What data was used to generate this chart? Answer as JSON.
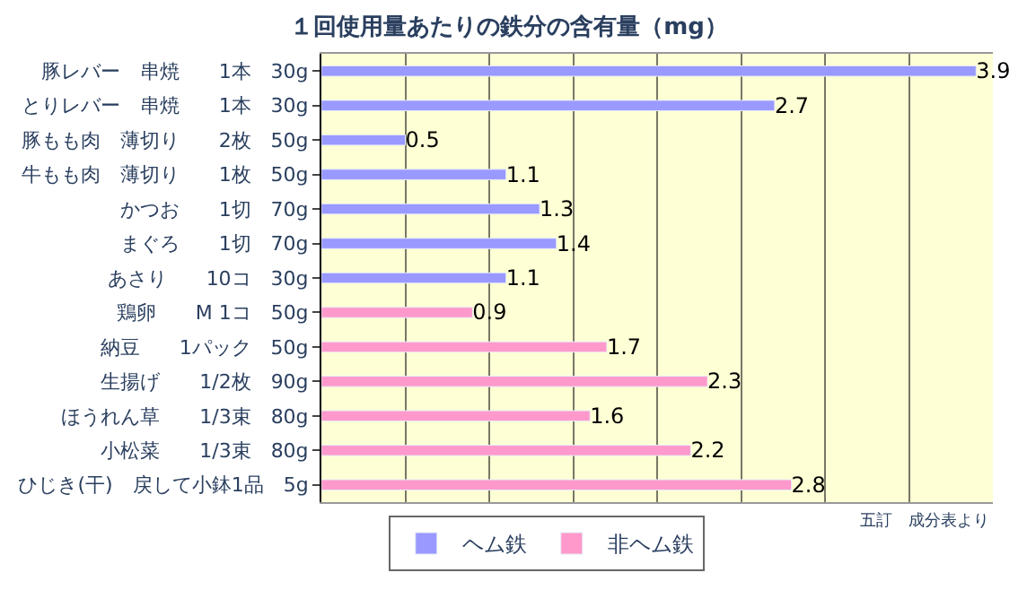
{
  "chart_data": {
    "type": "bar",
    "orientation": "horizontal",
    "title": "１回使用量あたりの鉄分の含有量（mg）",
    "categories": [
      "豚レバー　串焼　　1本　30g",
      "とりレバー　串焼　　1本　30g",
      "豚もも肉　薄切り　　2枚　50g",
      "牛もも肉　薄切り　　1枚　50g",
      "かつお　　1切　70g",
      "まぐろ　　1切　70g",
      "あさり　　10コ　30g",
      "鶏卵　　M 1コ　50g",
      "納豆　　1パック　50g",
      "生揚げ　　1/2枚　90g",
      "ほうれん草　　1/3束　80g",
      "小松菜　　1/3束　80g",
      "ひじき(干)　戻して小鉢1品　5g"
    ],
    "series": [
      {
        "name": "ヘム鉄",
        "color": "#9999ff",
        "values": [
          3.9,
          2.7,
          0.5,
          1.1,
          1.3,
          1.4,
          1.1,
          null,
          null,
          null,
          null,
          null,
          null
        ]
      },
      {
        "name": "非ヘム鉄",
        "color": "#ff99cc",
        "values": [
          null,
          null,
          null,
          null,
          null,
          null,
          null,
          0.9,
          1.7,
          2.3,
          1.6,
          2.2,
          2.8
        ]
      }
    ],
    "xlim": [
      0,
      4
    ],
    "xticks": [
      {
        "value": 0,
        "label": null
      },
      {
        "value": 0.5,
        "label": null
      },
      {
        "value": 1,
        "label": null
      },
      {
        "value": 1.5,
        "label": null
      },
      {
        "value": 2,
        "label": null
      },
      {
        "value": 2.5,
        "label": null
      },
      {
        "value": 3,
        "label": null
      },
      {
        "value": 3.5,
        "label": null
      },
      {
        "value": 4,
        "label": null
      }
    ],
    "tick_labels": "y",
    "grid": "x",
    "data_labels": true,
    "legend": "bottom",
    "annotations": [
      "五訂　成分表より"
    ]
  }
}
